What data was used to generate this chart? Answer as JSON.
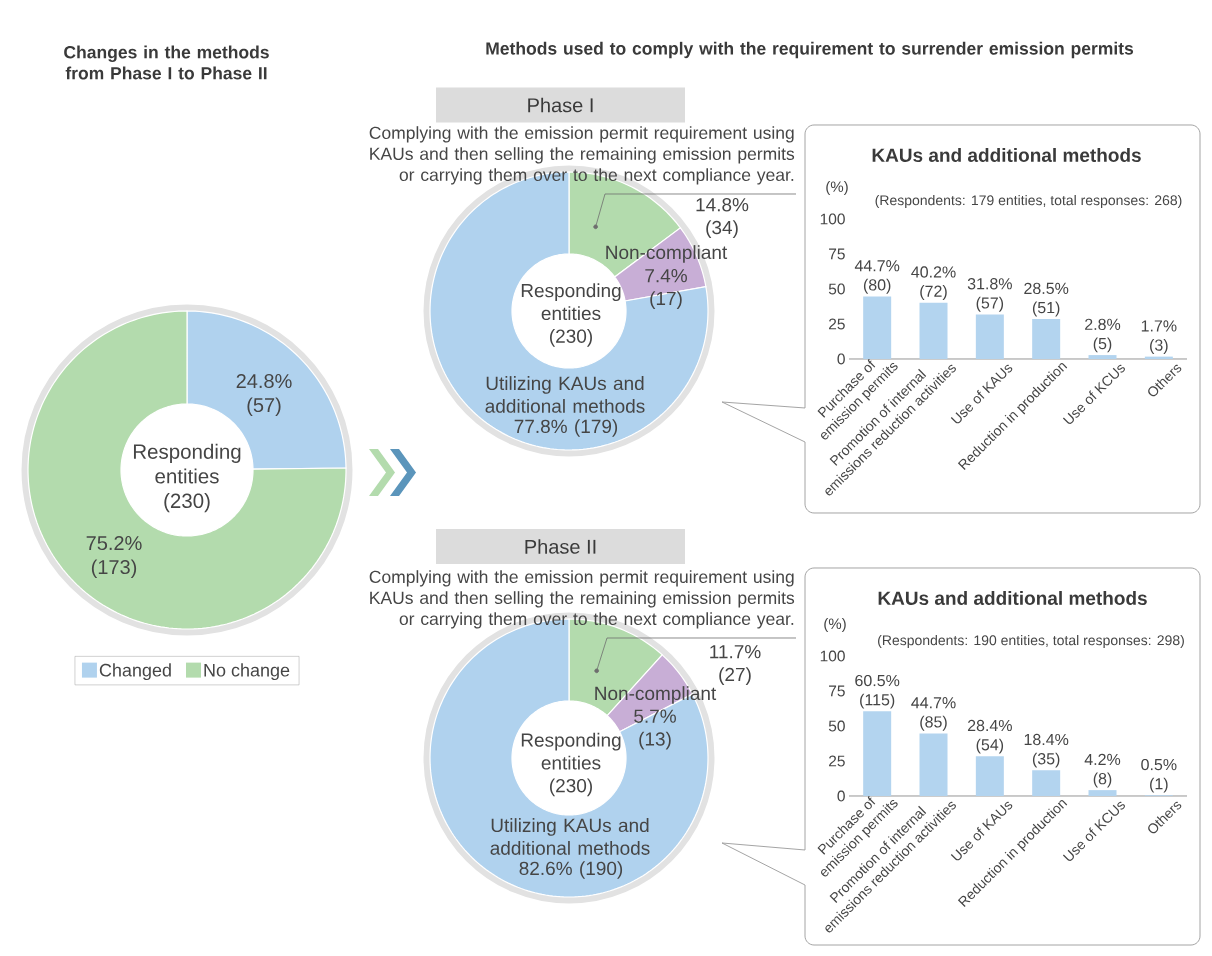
{
  "chart_data": [
    {
      "type": "donut",
      "title": "Changes in the methods from Phase I to Phase II",
      "categories": [
        "Changed",
        "No change"
      ],
      "values": [
        24.8,
        75.2
      ],
      "colors": [
        "#b0d2ee",
        "#b3dbad"
      ],
      "value_labels": [
        "24.8% (57)",
        "75.2% (173)"
      ],
      "annotations": [
        "Responding entities (230)"
      ],
      "legend": "bottom"
    },
    {
      "type": "donut",
      "title": "Methods used to comply with the requirement to surrender emission permits",
      "subtitle": "Phase I",
      "categories": [
        "Complying with the emission permit requirement using KAUs and then selling the remaining emission permits or carrying them over to the next compliance year.",
        "Non-compliant",
        "Utilizing KAUs and additional methods"
      ],
      "values": [
        14.8,
        7.4,
        77.8
      ],
      "colors": [
        "#b3dbad",
        "#c8aed6",
        "#b0d2ee"
      ],
      "value_labels": [
        "14.8% (34)",
        "7.4% (17)",
        "77.8% (179)"
      ],
      "annotations": [
        "Responding entities (230)"
      ]
    },
    {
      "type": "bar",
      "title": "KAUs and additional methods",
      "subtitle": "(Respondents: 179 entities, total responses: 268)",
      "ylabel": "(%)",
      "categories": [
        "Purchase of emission permits",
        "Promotion of internal emissions reduction activities",
        "Use of KAUs",
        "Reduction in production",
        "Use of KCUs",
        "Others"
      ],
      "values": [
        44.7,
        40.2,
        31.8,
        28.5,
        2.8,
        1.7
      ],
      "color": "#b3d4ef",
      "value_labels": [
        "44.7% (80)",
        "40.2% (72)",
        "31.8% (57)",
        "28.5% (51)",
        "2.8% (5)",
        "1.7% (3)"
      ],
      "ylim": [
        0,
        100
      ],
      "yticks": [
        0,
        25,
        50,
        75,
        100
      ]
    },
    {
      "type": "donut",
      "subtitle": "Phase II",
      "categories": [
        "Complying with the emission permit requirement using KAUs and then selling the remaining emission permits or carrying them over to the next compliance year.",
        "Non-compliant",
        "Utilizing KAUs and additional methods"
      ],
      "values": [
        11.7,
        5.7,
        82.6
      ],
      "colors": [
        "#b3dbad",
        "#c8aed6",
        "#b0d2ee"
      ],
      "value_labels": [
        "11.7% (27)",
        "5.7% (13)",
        "82.6% (190)"
      ],
      "annotations": [
        "Responding entities (230)"
      ]
    },
    {
      "type": "bar",
      "title": "KAUs and additional methods",
      "subtitle": "(Respondents: 190 entities, total responses: 298)",
      "ylabel": "(%)",
      "categories": [
        "Purchase of emission permits",
        "Promotion of internal emissions reduction activities",
        "Use of KAUs",
        "Reduction in production",
        "Use of KCUs",
        "Others"
      ],
      "values": [
        60.5,
        44.7,
        28.4,
        18.4,
        4.2,
        0.5
      ],
      "color": "#b3d4ef",
      "value_labels": [
        "60.5% (115)",
        "44.7% (85)",
        "28.4% (54)",
        "18.4% (35)",
        "4.2% (8)",
        "0.5% (1)"
      ],
      "ylim": [
        0,
        100
      ],
      "yticks": [
        0,
        25,
        50,
        75,
        100
      ]
    }
  ]
}
